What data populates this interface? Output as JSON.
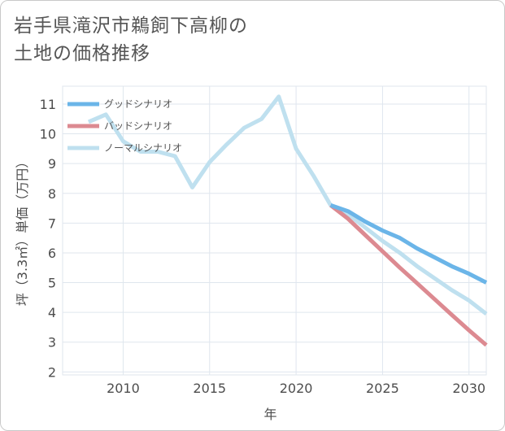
{
  "title_lines": [
    "岩手県滝沢市鵜飼下高柳の",
    "土地の価格推移"
  ],
  "chart_data": {
    "type": "line",
    "xlabel": "年",
    "ylabel": "坪（3.3㎡）単価（万円）",
    "xlim": [
      2006.5,
      2031
    ],
    "ylim": [
      1.9,
      11.6
    ],
    "xticks": [
      2010,
      2015,
      2020,
      2025,
      2030
    ],
    "yticks": [
      2,
      3,
      4,
      5,
      6,
      7,
      8,
      9,
      10,
      11
    ],
    "legend_position": "top-left",
    "series": [
      {
        "name": "グッドシナリオ",
        "color": "#6bb5e8",
        "x": [
          2022,
          2023,
          2024,
          2025,
          2026,
          2027,
          2028,
          2029,
          2030,
          2031
        ],
        "values": [
          7.6,
          7.4,
          7.05,
          6.75,
          6.5,
          6.15,
          5.85,
          5.55,
          5.3,
          5.0
        ]
      },
      {
        "name": "バッドシナリオ",
        "color": "#dc8a91",
        "x": [
          2022,
          2023,
          2024,
          2025,
          2026,
          2027,
          2028,
          2029,
          2030,
          2031
        ],
        "values": [
          7.6,
          7.15,
          6.6,
          6.05,
          5.5,
          4.98,
          4.45,
          3.92,
          3.4,
          2.9
        ]
      },
      {
        "name": "ノーマルシナリオ",
        "color": "#bfe0ef",
        "x": [
          2008,
          2009,
          2010,
          2011,
          2012,
          2013,
          2014,
          2015,
          2016,
          2017,
          2018,
          2019,
          2020,
          2021,
          2022,
          2023,
          2024,
          2025,
          2026,
          2027,
          2028,
          2029,
          2030,
          2031
        ],
        "values": [
          10.4,
          10.65,
          9.75,
          9.4,
          9.4,
          9.25,
          8.2,
          9.05,
          9.65,
          10.2,
          10.5,
          11.25,
          9.5,
          8.6,
          7.6,
          7.3,
          6.85,
          6.4,
          6.0,
          5.55,
          5.15,
          4.75,
          4.4,
          3.95
        ]
      }
    ]
  }
}
